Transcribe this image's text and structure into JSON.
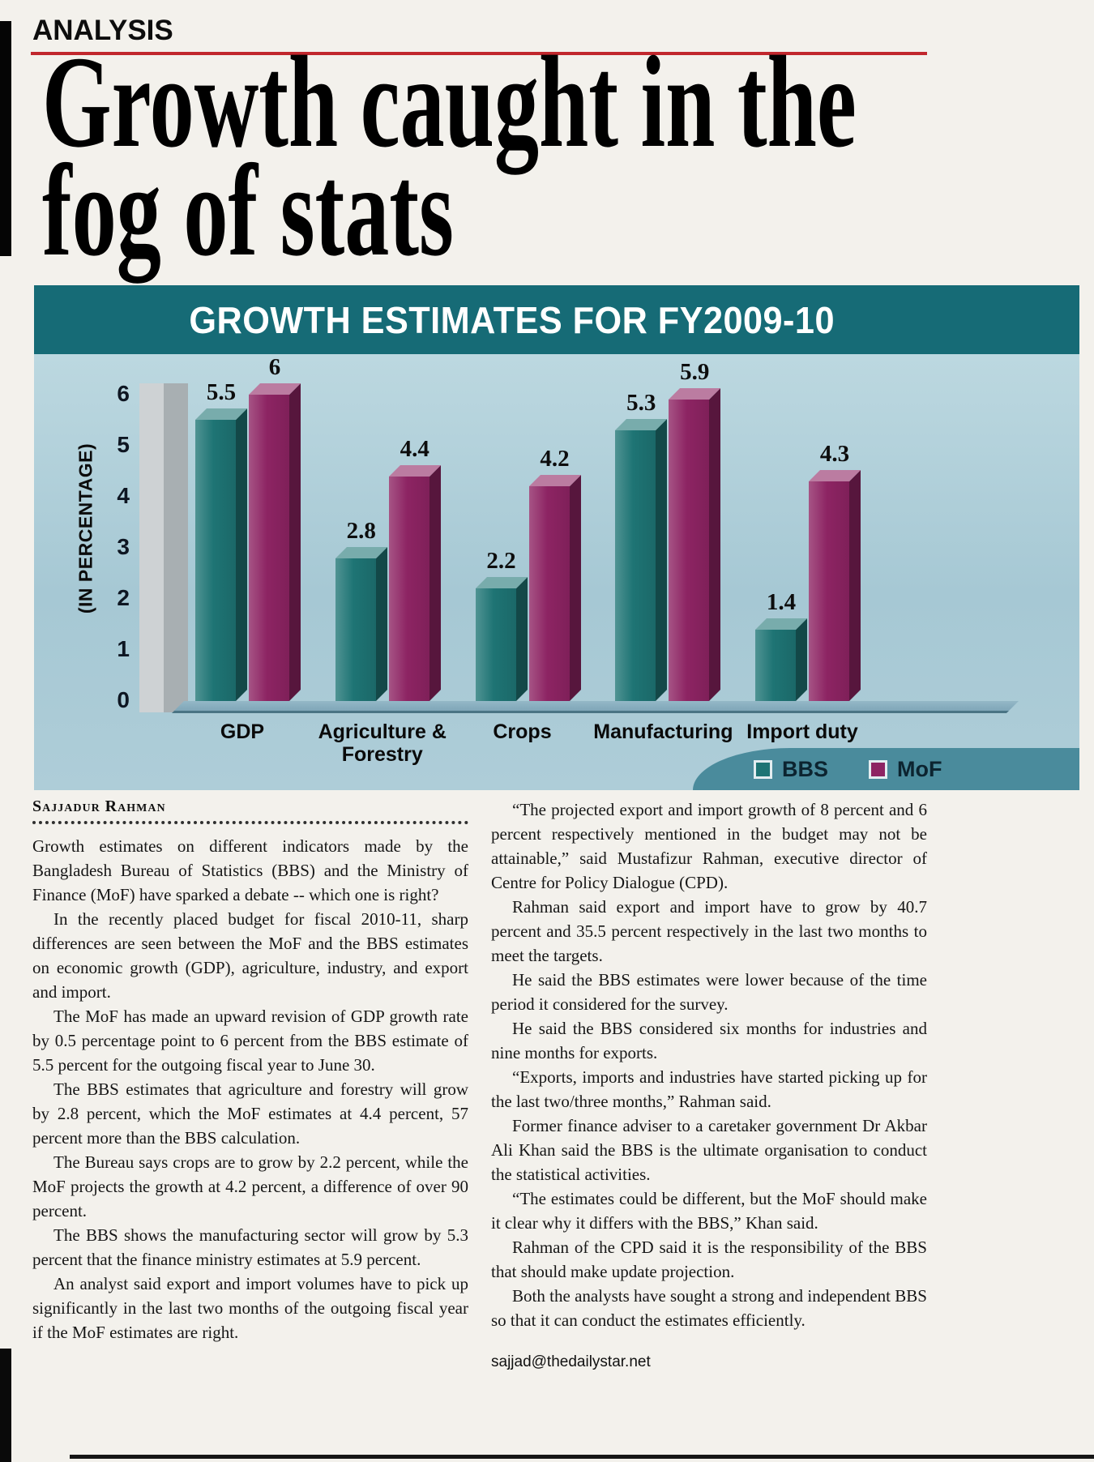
{
  "page": {
    "kicker": "ANALYSIS",
    "headline": {
      "line1": "Growth caught in the",
      "line2": "fog of stats"
    },
    "byline": "Sajjadur Rahman",
    "email": "sajjad@thedailystar.net"
  },
  "chart_data": {
    "type": "bar",
    "title": "GROWTH ESTIMATES FOR FY2009-10",
    "ylabel": "(IN PERCENTAGE)",
    "xlabel": "",
    "categories": [
      "GDP",
      "Agriculture & Forestry",
      "Crops",
      "Manufacturing",
      "Import duty"
    ],
    "series": [
      {
        "name": "BBS",
        "color": "#1e7474",
        "values": [
          5.5,
          2.8,
          2.2,
          5.3,
          1.4
        ]
      },
      {
        "name": "MoF",
        "color": "#8d2463",
        "values": [
          6,
          4.4,
          4.2,
          5.9,
          4.3
        ]
      }
    ],
    "yticks": [
      0,
      1,
      2,
      3,
      4,
      5,
      6
    ],
    "ylim": [
      0,
      6
    ],
    "grid": false,
    "legend_position": "bottom-right"
  },
  "article": {
    "left_paragraphs": [
      "Growth estimates on different indicators made by the Bangladesh Bureau of Statistics (BBS) and the Ministry of Finance (MoF) have sparked a debate -- which one is right?",
      "In the recently placed budget for fiscal 2010-11, sharp differences are seen between the MoF and the BBS estimates on economic growth (GDP), agriculture, industry, and export and import.",
      "The MoF has made an upward revision of GDP growth rate by 0.5 percentage point to 6 percent from the BBS estimate of 5.5 percent for the outgoing fiscal year to June 30.",
      "The BBS estimates that agriculture and forestry will grow by 2.8 percent, which the MoF estimates at 4.4 percent, 57 percent more than the BBS calculation.",
      "The Bureau says crops are to grow by 2.2 percent, while the MoF projects the growth at 4.2 percent, a difference of over 90 percent.",
      "The BBS shows the manufacturing sector will grow by 5.3 percent that the finance ministry estimates at 5.9 percent.",
      "An analyst said export and import volumes have to pick up significantly in the last two months of the outgoing fiscal year if the MoF estimates are right."
    ],
    "right_paragraphs": [
      "“The projected export and import growth of 8 percent and 6 percent respectively mentioned in the budget may not be attainable,” said Mustafizur Rahman, executive director of Centre for Policy Dialogue (CPD).",
      "Rahman said export and import have to grow by 40.7 percent and 35.5 percent respectively in the last two months to meet the targets.",
      "He said the BBS estimates were lower because of the time period it considered for the survey.",
      "He said the BBS considered six months for industries and nine months for exports.",
      "“Exports, imports and industries have started picking up for the last two/three months,” Rahman said.",
      "Former finance adviser to a caretaker government Dr Akbar Ali Khan said the BBS is the ultimate organisation to conduct the statistical activities.",
      "“The estimates could be different, but the MoF should make it clear why it differs with the BBS,” Khan said.",
      "Rahman of the CPD said it is the responsibility of the BBS that should make update projection.",
      "Both the analysts have sought a strong and independent BBS so that it can conduct the estimates efficiently."
    ]
  },
  "colors": {
    "chart_header": "#166b76",
    "chart_body": "#a6c8d4",
    "legend_band": "#4a8b9c",
    "red_rule": "#c1272d",
    "bbs_bar": "#1e7474",
    "mof_bar": "#8d2463"
  }
}
